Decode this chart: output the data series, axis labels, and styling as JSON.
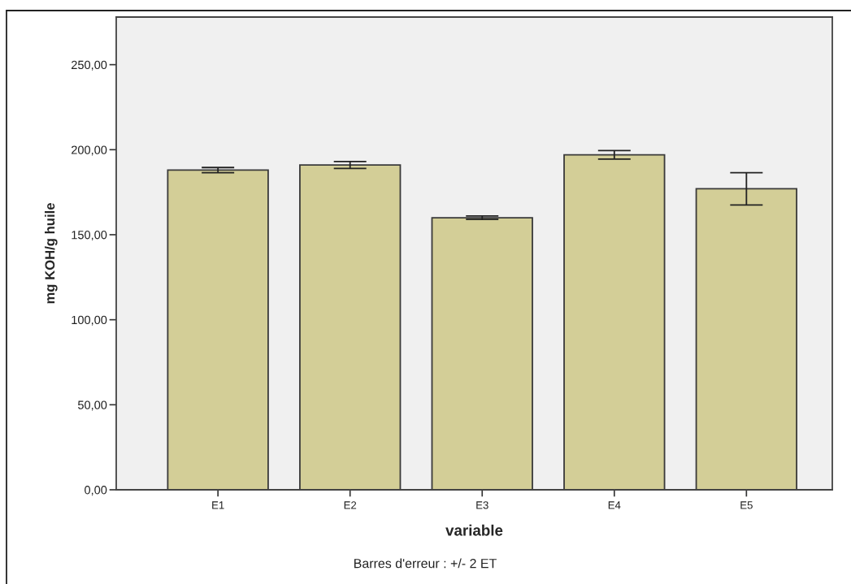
{
  "chart_data": {
    "type": "bar",
    "xlabel": "variable",
    "ylabel": "mg KOH/g huile",
    "annotations": [
      "Barres d'erreur : +/- 2 ET"
    ],
    "categories": [
      "E1",
      "E2",
      "E3",
      "E4",
      "E5"
    ],
    "values": [
      188,
      191,
      160,
      197,
      177
    ],
    "errors": [
      1.5,
      2,
      1,
      2.5,
      9.5
    ],
    "color": "#d3ce97",
    "ylim": [
      0,
      278
    ],
    "yticks": [
      {
        "value": 0,
        "label": "0,00"
      },
      {
        "value": 50,
        "label": "50,00"
      },
      {
        "value": 100,
        "label": "100,00"
      },
      {
        "value": 150,
        "label": "150,00"
      },
      {
        "value": 200,
        "label": "200,00"
      },
      {
        "value": 250,
        "label": "250,00"
      }
    ]
  }
}
